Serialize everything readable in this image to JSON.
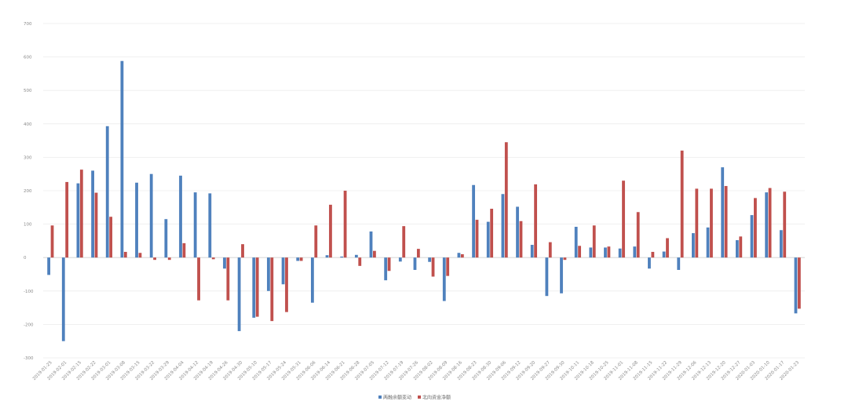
{
  "chart_data": {
    "type": "bar",
    "grid": true,
    "legend_position": "bottom-center",
    "ylim": [
      -300,
      700
    ],
    "yticks": [
      -300,
      -200,
      -100,
      0,
      100,
      200,
      300,
      400,
      500,
      600,
      700
    ],
    "categories": [
      "2019-01-25",
      "2019-02-01",
      "2019-02-15",
      "2019-02-22",
      "2019-03-01",
      "2019-03-08",
      "2019-03-15",
      "2019-03-22",
      "2019-03-29",
      "2019-04-04",
      "2019-04-12",
      "2019-04-19",
      "2019-04-26",
      "2019-04-30",
      "2019-05-10",
      "2019-05-17",
      "2019-05-24",
      "2019-05-31",
      "2019-06-06",
      "2019-06-14",
      "2019-06-21",
      "2019-06-28",
      "2019-07-05",
      "2019-07-12",
      "2019-07-19",
      "2019-07-26",
      "2019-08-02",
      "2019-08-09",
      "2019-08-16",
      "2019-08-23",
      "2019-08-30",
      "2019-09-06",
      "2019-09-12",
      "2019-09-20",
      "2019-09-27",
      "2019-09-30",
      "2019-10-11",
      "2019-10-18",
      "2019-10-25",
      "2019-11-01",
      "2019-11-08",
      "2019-11-15",
      "2019-11-22",
      "2019-11-29",
      "2019-12-06",
      "2019-12-13",
      "2019-12-20",
      "2019-12-27",
      "2020-01-03",
      "2020-01-10",
      "2020-01-17",
      "2020-01-23"
    ],
    "series": [
      {
        "name": "两融余额变动",
        "color": "#4f81bd",
        "values": [
          -52,
          -250,
          222,
          260,
          393,
          588,
          224,
          250,
          115,
          245,
          195,
          192,
          -33,
          -220,
          -180,
          -100,
          -80,
          -10,
          -135,
          7,
          3,
          8,
          78,
          -68,
          -12,
          -37,
          -13,
          -130,
          14,
          217,
          107,
          190,
          152,
          38,
          -115,
          -107,
          92,
          30,
          30,
          27,
          33,
          -33,
          18,
          -37,
          73,
          90,
          270,
          52,
          127,
          195,
          82,
          -167
        ]
      },
      {
        "name": "北向资金净额",
        "color": "#c0504d",
        "values": [
          96,
          226,
          263,
          194,
          122,
          17,
          14,
          -7,
          -7,
          43,
          -128,
          -5,
          -128,
          40,
          -177,
          -190,
          -163,
          -10,
          96,
          158,
          200,
          -25,
          20,
          -40,
          94,
          26,
          -57,
          -55,
          10,
          113,
          146,
          345,
          109,
          219,
          46,
          -7,
          35,
          96,
          33,
          230,
          136,
          17,
          58,
          320,
          206,
          206,
          214,
          63,
          178,
          208,
          197,
          -153
        ]
      }
    ]
  }
}
